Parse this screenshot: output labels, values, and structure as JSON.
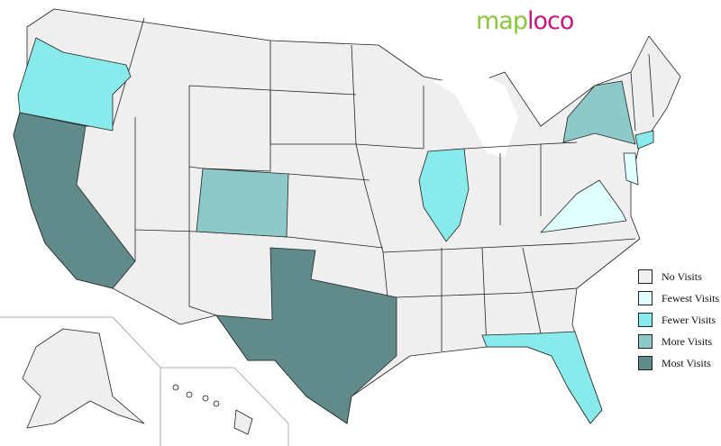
{
  "logo": {
    "part1": "map",
    "part2": "loco"
  },
  "legend": [
    {
      "label": "No Visits",
      "color": "#efefef"
    },
    {
      "label": "Fewest Visits",
      "color": "#e0ffff"
    },
    {
      "label": "Fewer Visits",
      "color": "#88eaea"
    },
    {
      "label": "More Visits",
      "color": "#8ec9c9"
    },
    {
      "label": "Most Visits",
      "color": "#618b8b"
    }
  ],
  "states": [
    {
      "name": "Oregon",
      "level": "Fewer Visits"
    },
    {
      "name": "California",
      "level": "Most Visits"
    },
    {
      "name": "Colorado",
      "level": "More Visits"
    },
    {
      "name": "Texas",
      "level": "Most Visits"
    },
    {
      "name": "Illinois",
      "level": "Fewer Visits"
    },
    {
      "name": "New York",
      "level": "More Visits"
    },
    {
      "name": "Florida",
      "level": "Fewer Visits"
    },
    {
      "name": "Virginia",
      "level": "Fewest Visits"
    },
    {
      "name": "New Jersey",
      "level": "Fewest Visits"
    },
    {
      "name": "Connecticut",
      "level": "Fewer Visits"
    }
  ]
}
